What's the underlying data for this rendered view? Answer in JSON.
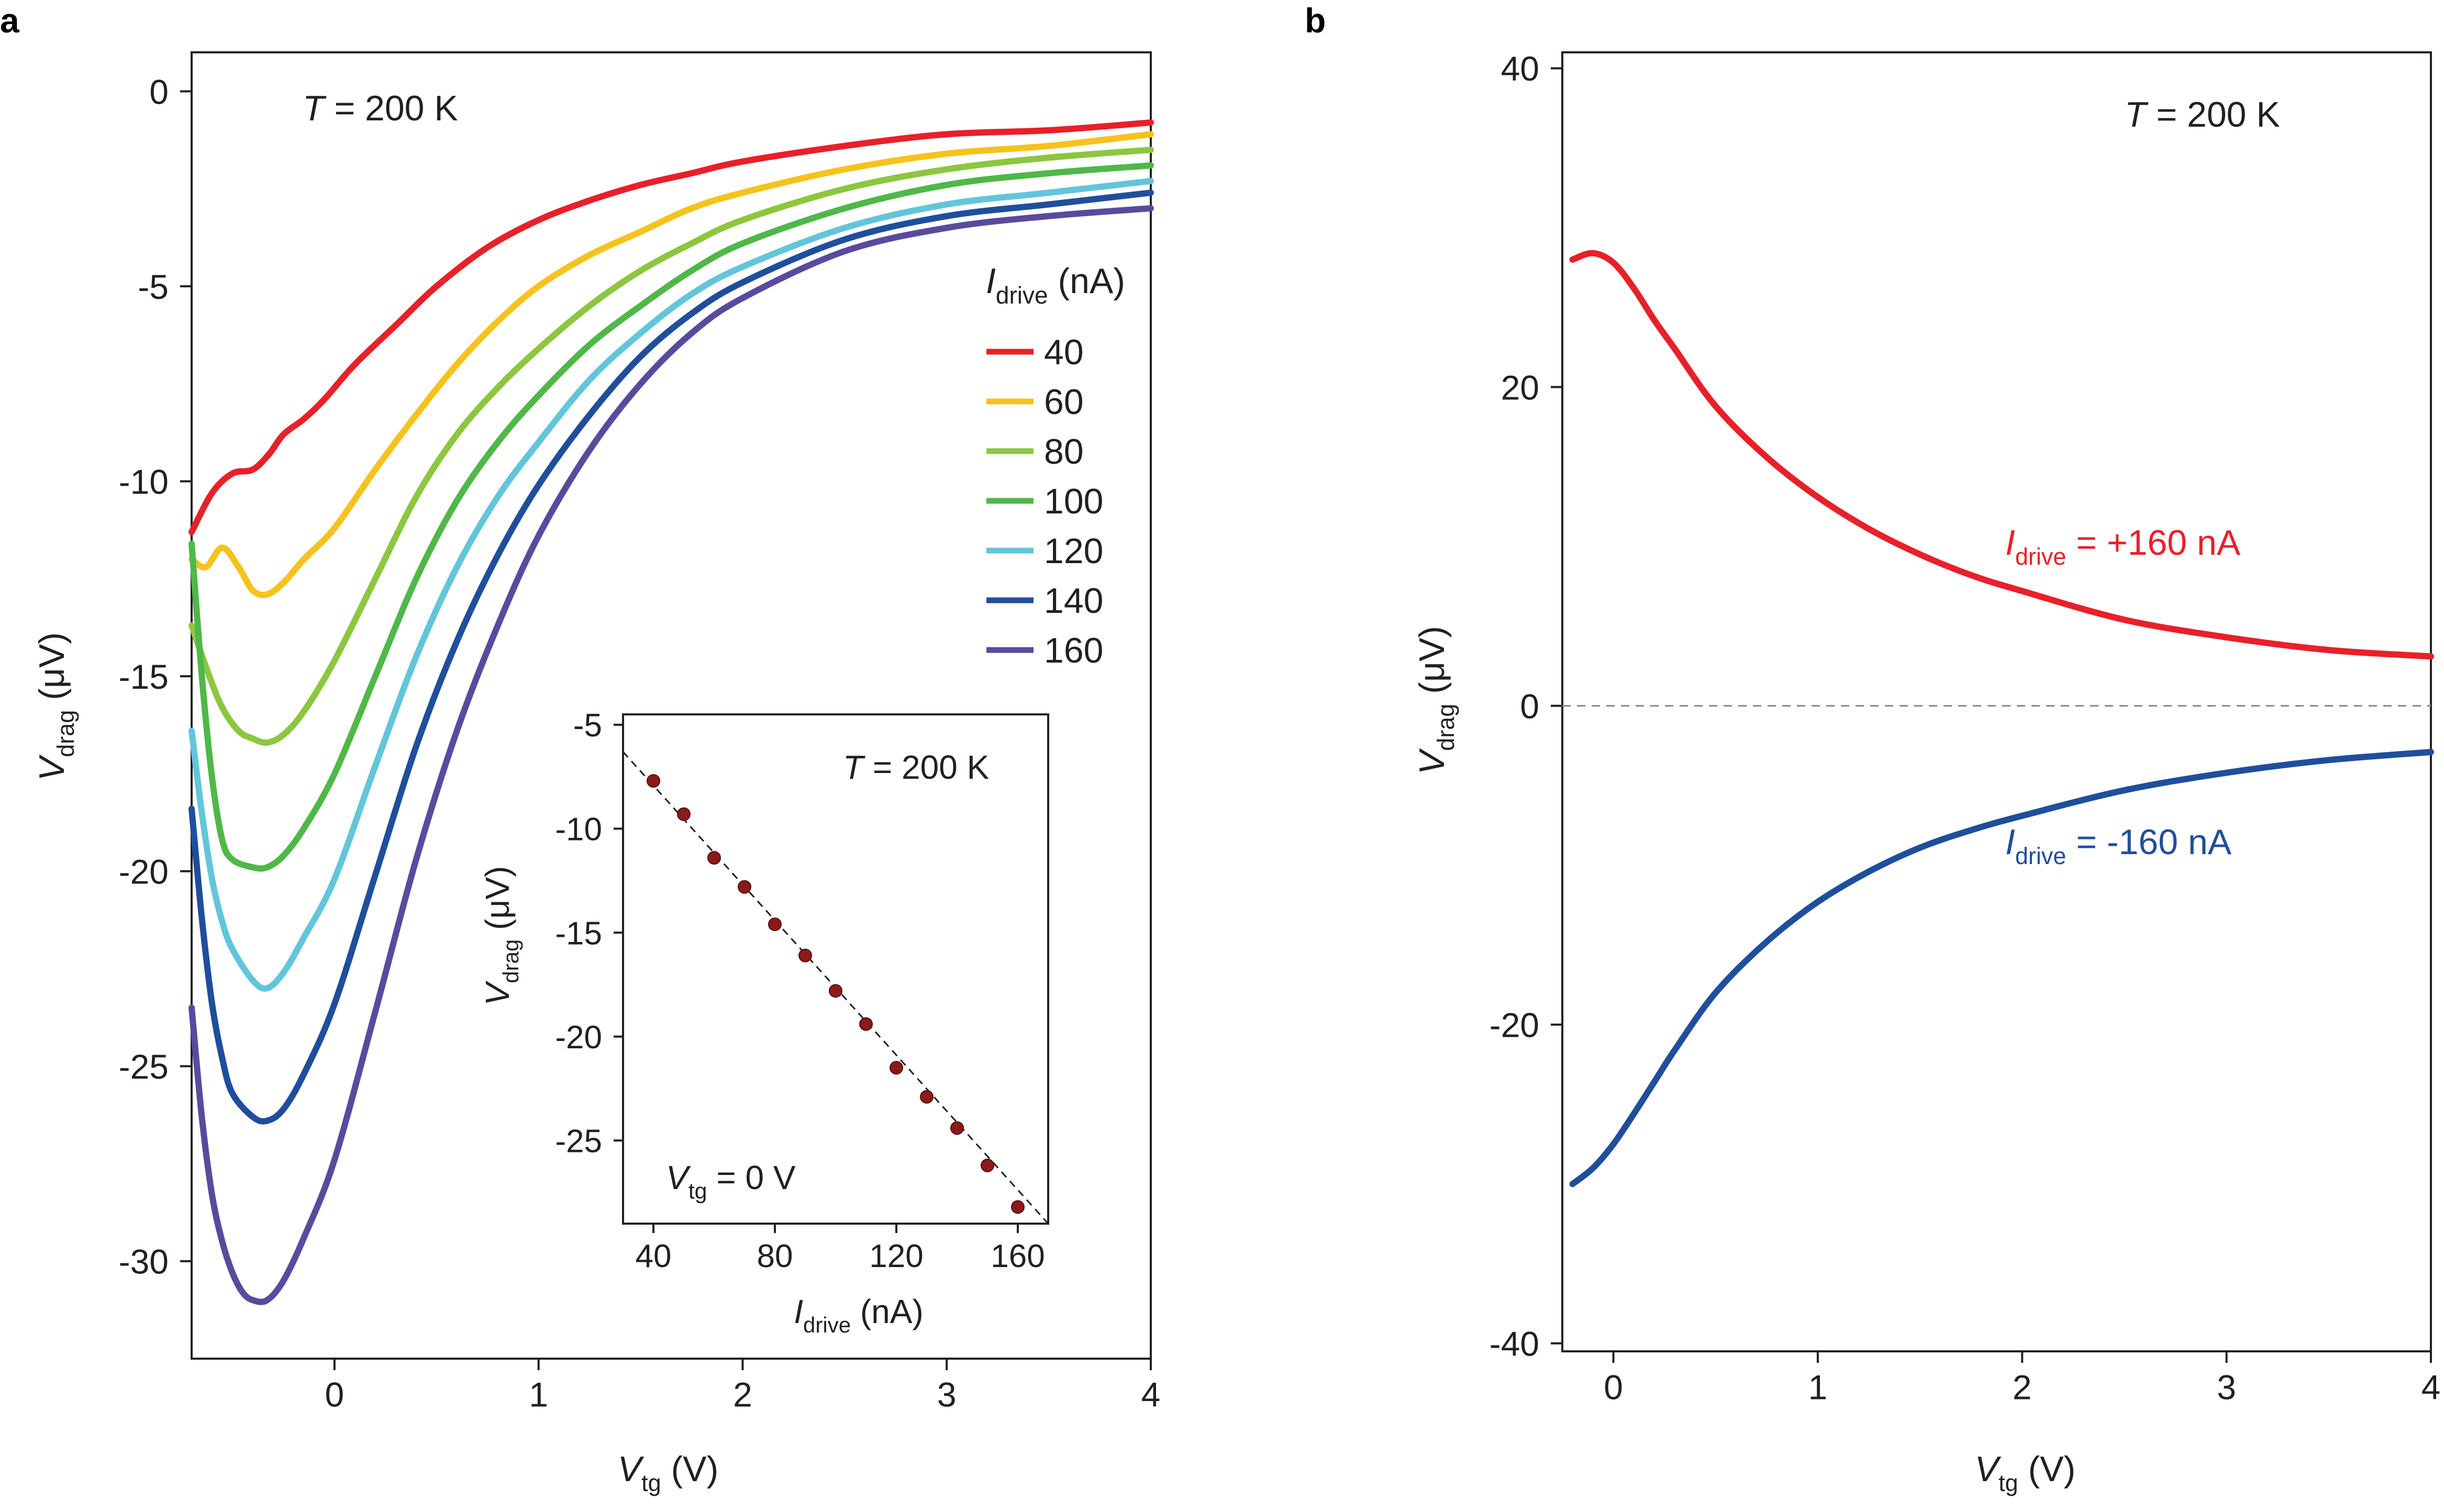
{
  "figure": {
    "panel_a_label": "a",
    "panel_b_label": "b"
  },
  "chart_data": [
    {
      "id": "panel-a",
      "type": "line",
      "x_label": {
        "main": "V",
        "sub": "tg",
        "unit": " (V)"
      },
      "y_label": {
        "main": "V",
        "sub": "drag",
        "unit": " (μV)"
      },
      "xlim": [
        -0.7,
        4
      ],
      "ylim": [
        -32.5,
        1
      ],
      "xticks": [
        0,
        1,
        2,
        3,
        4
      ],
      "yticks": [
        0,
        -5,
        -10,
        -15,
        -20,
        -25,
        -30
      ],
      "grid": false,
      "annotation": {
        "italic": "T",
        "rest": " = 200 K"
      },
      "legend": {
        "title_main": "I",
        "title_sub": "drive",
        "title_unit": " (nA)",
        "placement": "right"
      },
      "series": [
        {
          "name": "40",
          "color": "#e8202a",
          "x": [
            -0.7,
            -0.6,
            -0.5,
            -0.4,
            -0.32,
            -0.25,
            -0.15,
            -0.05,
            0.1,
            0.3,
            0.5,
            0.75,
            1.0,
            1.25,
            1.5,
            1.75,
            2.0,
            2.5,
            3.0,
            3.5,
            4.0
          ],
          "y": [
            -11.3,
            -10.3,
            -9.8,
            -9.7,
            -9.3,
            -8.8,
            -8.4,
            -7.9,
            -7.0,
            -6.0,
            -5.0,
            -4.0,
            -3.3,
            -2.8,
            -2.4,
            -2.1,
            -1.8,
            -1.4,
            -1.1,
            -1.0,
            -0.8
          ]
        },
        {
          "name": "60",
          "color": "#f6c21c",
          "x": [
            -0.7,
            -0.63,
            -0.55,
            -0.47,
            -0.4,
            -0.33,
            -0.25,
            -0.15,
            0,
            0.2,
            0.4,
            0.6,
            0.8,
            1.0,
            1.25,
            1.5,
            1.75,
            2.0,
            2.5,
            3.0,
            3.5,
            4.0
          ],
          "y": [
            -12.0,
            -12.2,
            -11.7,
            -12.2,
            -12.8,
            -12.9,
            -12.6,
            -12.0,
            -11.2,
            -9.7,
            -8.3,
            -7.0,
            -5.9,
            -5.0,
            -4.2,
            -3.6,
            -3.0,
            -2.6,
            -2.0,
            -1.6,
            -1.4,
            -1.1
          ]
        },
        {
          "name": "80",
          "color": "#8dc63f",
          "x": [
            -0.7,
            -0.62,
            -0.55,
            -0.47,
            -0.4,
            -0.33,
            -0.25,
            -0.15,
            0,
            0.2,
            0.4,
            0.6,
            0.8,
            1.0,
            1.25,
            1.5,
            1.75,
            2.0,
            2.5,
            3.0,
            3.5,
            4.0
          ],
          "y": [
            -13.7,
            -14.9,
            -15.8,
            -16.4,
            -16.6,
            -16.7,
            -16.5,
            -15.9,
            -14.6,
            -12.5,
            -10.4,
            -8.8,
            -7.6,
            -6.6,
            -5.5,
            -4.6,
            -3.9,
            -3.3,
            -2.5,
            -2.0,
            -1.7,
            -1.5
          ]
        },
        {
          "name": "100",
          "color": "#4fb848",
          "x": [
            -0.7,
            -0.65,
            -0.6,
            -0.55,
            -0.5,
            -0.4,
            -0.33,
            -0.25,
            -0.15,
            0,
            0.2,
            0.4,
            0.6,
            0.8,
            1.0,
            1.25,
            1.5,
            1.75,
            2.0,
            2.5,
            3.0,
            3.5,
            4.0
          ],
          "y": [
            -11.6,
            -15.0,
            -17.6,
            -19.2,
            -19.7,
            -19.9,
            -19.9,
            -19.6,
            -18.9,
            -17.5,
            -15.0,
            -12.5,
            -10.5,
            -9.0,
            -7.8,
            -6.5,
            -5.5,
            -4.6,
            -3.9,
            -3.0,
            -2.4,
            -2.1,
            -1.9
          ]
        },
        {
          "name": "120",
          "color": "#63c5db",
          "x": [
            -0.7,
            -0.65,
            -0.6,
            -0.55,
            -0.5,
            -0.4,
            -0.33,
            -0.25,
            -0.15,
            0,
            0.2,
            0.4,
            0.6,
            0.8,
            1.0,
            1.25,
            1.5,
            1.75,
            2.0,
            2.5,
            3.0,
            3.5,
            4.0
          ],
          "y": [
            -16.4,
            -18.5,
            -20.2,
            -21.3,
            -22.0,
            -22.8,
            -23.0,
            -22.6,
            -21.7,
            -20.2,
            -17.3,
            -14.5,
            -12.2,
            -10.4,
            -9.0,
            -7.4,
            -6.2,
            -5.2,
            -4.5,
            -3.5,
            -2.9,
            -2.6,
            -2.3
          ]
        },
        {
          "name": "140",
          "color": "#1f4e9c",
          "x": [
            -0.7,
            -0.65,
            -0.6,
            -0.55,
            -0.5,
            -0.4,
            -0.33,
            -0.25,
            -0.15,
            0,
            0.2,
            0.4,
            0.6,
            0.8,
            1.0,
            1.25,
            1.5,
            1.75,
            2.0,
            2.5,
            3.0,
            3.5,
            4.0
          ],
          "y": [
            -18.4,
            -21.2,
            -23.4,
            -24.8,
            -25.7,
            -26.3,
            -26.4,
            -26.1,
            -25.2,
            -23.4,
            -20.1,
            -16.8,
            -14.1,
            -11.9,
            -10.1,
            -8.3,
            -6.8,
            -5.7,
            -4.9,
            -3.8,
            -3.2,
            -2.9,
            -2.6
          ]
        },
        {
          "name": "160",
          "color": "#5a4a9e",
          "x": [
            -0.7,
            -0.65,
            -0.6,
            -0.55,
            -0.5,
            -0.45,
            -0.4,
            -0.33,
            -0.25,
            -0.15,
            0,
            0.2,
            0.4,
            0.6,
            0.8,
            1.0,
            1.25,
            1.5,
            1.75,
            2.0,
            2.5,
            3.0,
            3.5,
            4.0
          ],
          "y": [
            -23.5,
            -26.3,
            -28.3,
            -29.5,
            -30.3,
            -30.8,
            -31.0,
            -31.0,
            -30.5,
            -29.4,
            -27.4,
            -23.6,
            -19.7,
            -16.4,
            -13.7,
            -11.4,
            -9.2,
            -7.5,
            -6.2,
            -5.3,
            -4.1,
            -3.5,
            -3.2,
            -3.0
          ]
        }
      ],
      "inset": {
        "type": "scatter",
        "x_label": {
          "main": "I",
          "sub": "drive",
          "unit": " (nA)"
        },
        "y_label": {
          "main": "V",
          "sub": "drag",
          "unit": " (μV)"
        },
        "xlim": [
          30,
          170
        ],
        "ylim": [
          -29,
          -4.5
        ],
        "xticks": [
          40,
          80,
          120,
          160
        ],
        "yticks": [
          -5,
          -10,
          -15,
          -20,
          -25
        ],
        "annotation": {
          "italic": "T",
          "rest": " = 200 K"
        },
        "annotation2": {
          "main": "V",
          "sub": "tg",
          "rest": " = 0 V"
        },
        "point_color": "#8b1a1a",
        "x": [
          40,
          50,
          60,
          70,
          80,
          90,
          100,
          110,
          120,
          130,
          140,
          150,
          160
        ],
        "y": [
          -7.7,
          -9.3,
          -11.4,
          -12.8,
          -14.6,
          -16.1,
          -17.8,
          -19.4,
          -21.5,
          -22.9,
          -24.4,
          -26.2,
          -28.2
        ],
        "fit_line": {
          "x": [
            30,
            170
          ],
          "y": [
            -6.3,
            -29.0
          ]
        }
      }
    },
    {
      "id": "panel-b",
      "type": "line",
      "x_label": {
        "main": "V",
        "sub": "tg",
        "unit": " (V)"
      },
      "y_label": {
        "main": "V",
        "sub": "drag",
        "unit": " (μV)"
      },
      "xlim": [
        -0.25,
        4
      ],
      "ylim": [
        -40.5,
        41
      ],
      "xticks": [
        0,
        1,
        2,
        3,
        4
      ],
      "yticks": [
        40,
        20,
        0,
        -20,
        -40
      ],
      "grid": false,
      "zero_line": true,
      "annotation": {
        "italic": "T",
        "rest": " = 200 K"
      },
      "series": [
        {
          "name": "+160",
          "label_main": "I",
          "label_sub": "drive",
          "label_rest": " = +160 nA",
          "color": "#e8202a",
          "x": [
            -0.2,
            -0.1,
            0,
            0.1,
            0.2,
            0.3,
            0.5,
            0.75,
            1.0,
            1.25,
            1.5,
            1.75,
            2.0,
            2.5,
            3.0,
            3.5,
            4.0
          ],
          "y": [
            28.0,
            28.4,
            27.8,
            26.2,
            24.2,
            22.4,
            18.8,
            15.6,
            13.1,
            11.1,
            9.5,
            8.2,
            7.2,
            5.4,
            4.3,
            3.5,
            3.1
          ]
        },
        {
          "name": "-160",
          "label_main": "I",
          "label_sub": "drive",
          "label_rest": " = -160 nA",
          "color": "#1f4e9c",
          "x": [
            -0.2,
            -0.1,
            0,
            0.1,
            0.2,
            0.3,
            0.5,
            0.75,
            1.0,
            1.25,
            1.5,
            1.75,
            2.0,
            2.5,
            3.0,
            3.5,
            4.0
          ],
          "y": [
            -30.0,
            -29.0,
            -27.5,
            -25.6,
            -23.6,
            -21.6,
            -18.0,
            -14.8,
            -12.3,
            -10.4,
            -8.9,
            -7.8,
            -6.9,
            -5.3,
            -4.2,
            -3.4,
            -2.9
          ]
        }
      ]
    }
  ]
}
